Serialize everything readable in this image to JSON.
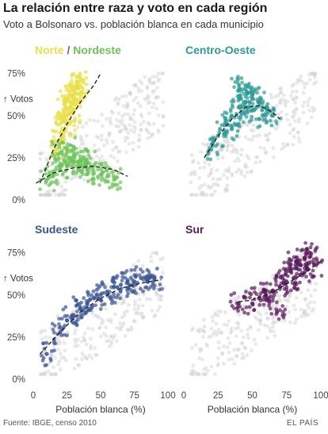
{
  "header": {
    "title": "La relación entre raza y voto en cada región",
    "subtitle": "Voto a Bolsonaro vs. población blanca en cada municipio"
  },
  "footer": {
    "source": "Fuente: IBGE, censo 2010",
    "brand": "EL PAÍS"
  },
  "colors": {
    "background_points": "#cfcfcf",
    "norte": "#e8e04a",
    "nordeste": "#6cc35a",
    "centro_oeste": "#2e9a96",
    "sudeste": "#3a5595",
    "sur": "#5a1a5e",
    "trend": "#222222"
  },
  "chart_data": [
    {
      "type": "scatter",
      "panel": "Norte / Nordeste",
      "labels": [
        {
          "text": "Norte",
          "color": "#e8e04a"
        },
        {
          "text": " / ",
          "color": "#666666"
        },
        {
          "text": "Nordeste",
          "color": "#6cc35a"
        }
      ],
      "ylabel": "↑ Votos",
      "x_ticks": [],
      "y_ticks": [
        "75%",
        "50%",
        "25%",
        "0%"
      ],
      "xlim": [
        0,
        100
      ],
      "ylim": [
        0,
        80
      ],
      "grid": false,
      "series": [
        {
          "name": "Norte",
          "color": "#e8e04a",
          "x": [
            18,
            20,
            22,
            24,
            26,
            28,
            30,
            32,
            34,
            36,
            20,
            24,
            28,
            32,
            26,
            30
          ],
          "y": [
            30,
            40,
            48,
            55,
            60,
            62,
            65,
            68,
            70,
            64,
            35,
            50,
            58,
            66,
            45,
            52
          ]
        },
        {
          "name": "Nordeste",
          "color": "#6cc35a",
          "x": [
            10,
            15,
            20,
            25,
            30,
            35,
            40,
            45,
            50,
            55,
            60,
            20,
            25,
            30,
            35,
            40
          ],
          "y": [
            12,
            15,
            18,
            20,
            22,
            20,
            18,
            16,
            15,
            14,
            12,
            28,
            30,
            26,
            24,
            22
          ]
        }
      ],
      "trends": [
        {
          "name": "Norte",
          "x": [
            5,
            15,
            25,
            35,
            45,
            50
          ],
          "y": [
            10,
            30,
            45,
            58,
            68,
            75
          ]
        },
        {
          "name": "Nordeste",
          "x": [
            2,
            15,
            30,
            45,
            60,
            70
          ],
          "y": [
            10,
            16,
            19,
            20,
            18,
            14
          ]
        }
      ]
    },
    {
      "type": "scatter",
      "panel": "Centro-Oeste",
      "labels": [
        {
          "text": "Centro-Oeste",
          "color": "#2e9a96"
        }
      ],
      "ylabel": "",
      "x_ticks": [],
      "y_ticks": [],
      "xlim": [
        0,
        100
      ],
      "ylim": [
        0,
        80
      ],
      "grid": false,
      "series": [
        {
          "name": "Centro-Oeste",
          "color": "#2e9a96",
          "x": [
            20,
            25,
            30,
            35,
            40,
            45,
            50,
            55,
            60,
            65,
            40,
            45,
            50,
            35,
            55,
            42
          ],
          "y": [
            30,
            38,
            45,
            50,
            55,
            58,
            60,
            58,
            55,
            50,
            65,
            68,
            62,
            42,
            48,
            52
          ]
        }
      ],
      "trends": [
        {
          "name": "Centro-Oeste",
          "x": [
            15,
            25,
            35,
            45,
            55,
            65,
            70
          ],
          "y": [
            25,
            38,
            48,
            55,
            56,
            52,
            48
          ]
        }
      ]
    },
    {
      "type": "scatter",
      "panel": "Sudeste",
      "labels": [
        {
          "text": "Sudeste",
          "color": "#3a5595"
        }
      ],
      "ylabel": "↑ Votos",
      "xlabel": "Población blanca (%)",
      "x_ticks": [
        "0",
        "25",
        "50",
        "75",
        "100"
      ],
      "y_ticks": [
        "75%",
        "50%",
        "25%",
        "0%"
      ],
      "xlim": [
        0,
        100
      ],
      "ylim": [
        0,
        80
      ],
      "grid": false,
      "series": [
        {
          "name": "Sudeste",
          "color": "#3a5595",
          "x": [
            10,
            20,
            30,
            40,
            50,
            60,
            70,
            80,
            90,
            25,
            35,
            45,
            55,
            65,
            75,
            85
          ],
          "y": [
            15,
            28,
            38,
            45,
            50,
            55,
            58,
            60,
            60,
            35,
            42,
            48,
            52,
            56,
            58,
            58
          ]
        }
      ],
      "trends": [
        {
          "name": "Sudeste",
          "x": [
            5,
            20,
            35,
            50,
            65,
            80,
            95
          ],
          "y": [
            15,
            28,
            40,
            48,
            54,
            57,
            59
          ]
        }
      ]
    },
    {
      "type": "scatter",
      "panel": "Sur",
      "labels": [
        {
          "text": "Sur",
          "color": "#5a1a5e"
        }
      ],
      "ylabel": "",
      "xlabel": "Población blanca (%)",
      "x_ticks": [
        "0",
        "25",
        "50",
        "75",
        "100"
      ],
      "y_ticks": [],
      "xlim": [
        0,
        100
      ],
      "ylim": [
        0,
        80
      ],
      "grid": false,
      "series": [
        {
          "name": "Sur",
          "color": "#5a1a5e",
          "x": [
            40,
            50,
            60,
            70,
            80,
            90,
            95,
            65,
            75,
            85,
            55,
            88,
            92,
            78,
            68,
            82
          ],
          "y": [
            45,
            45,
            50,
            55,
            60,
            65,
            68,
            52,
            58,
            62,
            48,
            72,
            75,
            64,
            40,
            70
          ]
        }
      ],
      "trends": [
        {
          "name": "Sur",
          "x": [
            40,
            50,
            60,
            70,
            80,
            90,
            100
          ],
          "y": [
            46,
            47,
            50,
            54,
            59,
            64,
            70
          ]
        }
      ]
    }
  ]
}
